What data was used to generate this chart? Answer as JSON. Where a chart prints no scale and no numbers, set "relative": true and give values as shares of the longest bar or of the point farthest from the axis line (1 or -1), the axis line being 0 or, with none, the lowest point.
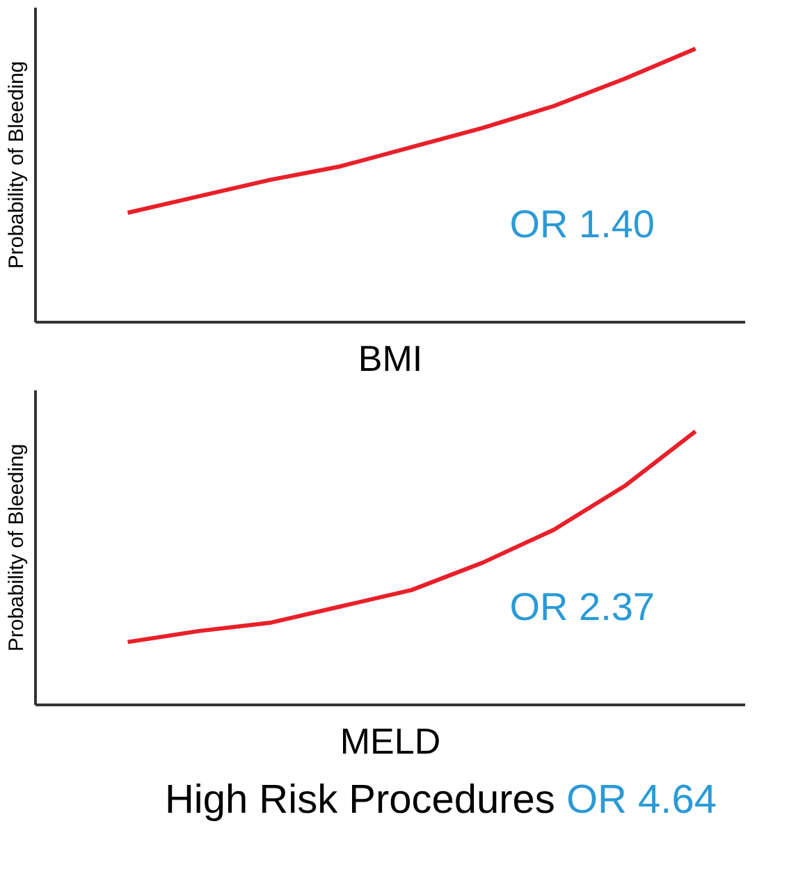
{
  "chart_data": [
    {
      "type": "line",
      "relative": true,
      "xlabel": "BMI",
      "ylabel": "Probability of Bleeding",
      "categories": [
        null,
        null,
        null,
        null,
        null,
        null,
        null,
        null,
        null
      ],
      "series": [
        {
          "color": "#e8202a",
          "values": [
            0.4,
            0.46,
            0.52,
            0.57,
            0.64,
            0.71,
            0.79,
            0.89,
            1.0
          ]
        }
      ],
      "annotations": [
        "OR 1.40"
      ]
    },
    {
      "type": "line",
      "relative": true,
      "xlabel": "MELD",
      "ylabel": "Probability of Bleeding",
      "categories": [
        null,
        null,
        null,
        null,
        null,
        null,
        null,
        null,
        null
      ],
      "series": [
        {
          "color": "#e8202a",
          "values": [
            0.23,
            0.27,
            0.3,
            0.36,
            0.42,
            0.52,
            0.64,
            0.8,
            1.0
          ]
        }
      ],
      "annotations": [
        "OR 2.37",
        "High Risk Procedures",
        "OR 4.64"
      ]
    }
  ]
}
